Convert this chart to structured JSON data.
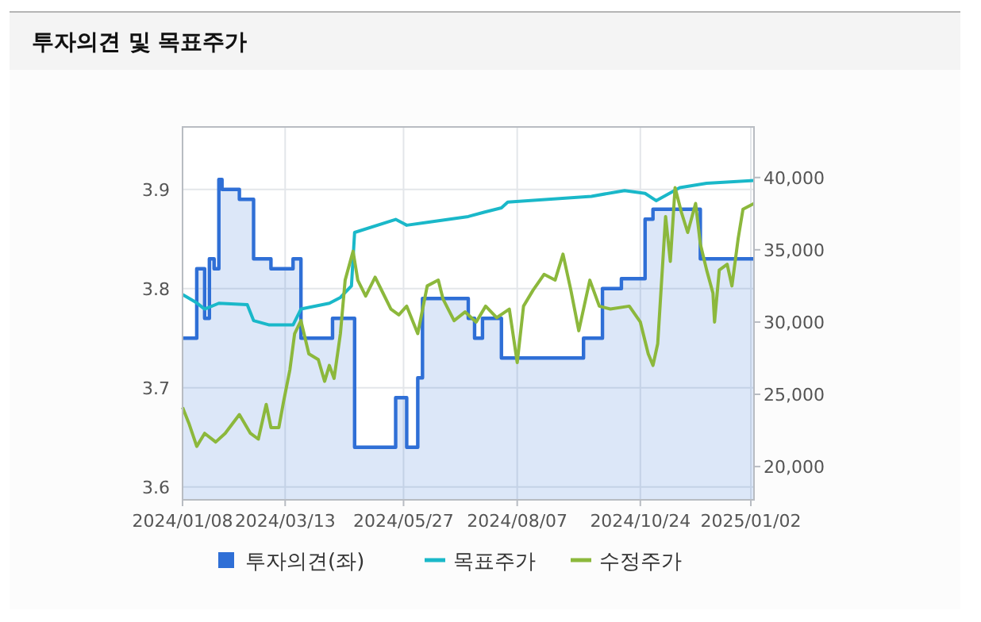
{
  "chart_data": {
    "type": "line",
    "title": "투자의견 및 목표주가",
    "legend": "bottom",
    "grid": true,
    "xlim": [
      "2024-01-08",
      "2025-01-04"
    ],
    "xticks": [
      {
        "value": "2024-01-08",
        "label": "2024/01/08"
      },
      {
        "value": "2024-03-13",
        "label": "2024/03/13"
      },
      {
        "value": "2024-05-27",
        "label": "2024/05/27"
      },
      {
        "value": "2024-08-07",
        "label": "2024/08/07"
      },
      {
        "value": "2024-10-24",
        "label": "2024/10/24"
      },
      {
        "value": "2025-01-02",
        "label": "2025/01/02"
      }
    ],
    "ylim": [
      3.587,
      3.963
    ],
    "yticks": [
      3.6,
      3.7,
      3.8,
      3.9
    ],
    "y2lim": [
      17700,
      43500
    ],
    "y2ticks": [
      {
        "value": 20000,
        "label": "20,000"
      },
      {
        "value": 25000,
        "label": "25,000"
      },
      {
        "value": 30000,
        "label": "30,000"
      },
      {
        "value": 35000,
        "label": "35,000"
      },
      {
        "value": 40000,
        "label": "40,000"
      }
    ],
    "series": [
      {
        "name": "투자의견(좌)",
        "type": "area",
        "color": "#2f6fd6",
        "x": [
          "2024-01-08",
          "2024-01-17",
          "2024-01-17",
          "2024-01-22",
          "2024-01-22",
          "2024-01-25",
          "2024-01-25",
          "2024-01-28",
          "2024-01-28",
          "2024-01-31",
          "2024-01-31",
          "2024-02-02",
          "2024-02-02",
          "2024-02-13",
          "2024-02-13",
          "2024-02-22",
          "2024-02-22",
          "2024-03-04",
          "2024-03-04",
          "2024-03-18",
          "2024-03-18",
          "2024-03-23",
          "2024-03-23",
          "2024-04-12",
          "2024-04-12",
          "2024-04-26",
          "2024-04-26",
          "2024-05-22",
          "2024-05-22",
          "2024-05-29",
          "2024-05-29",
          "2024-06-05",
          "2024-06-05",
          "2024-06-08",
          "2024-06-08",
          "2024-07-07",
          "2024-07-07",
          "2024-07-11",
          "2024-07-11",
          "2024-07-16",
          "2024-07-16",
          "2024-07-28",
          "2024-07-28",
          "2024-09-18",
          "2024-09-18",
          "2024-09-30",
          "2024-09-30",
          "2024-10-12",
          "2024-10-12",
          "2024-10-27",
          "2024-10-27",
          "2024-11-01",
          "2024-11-01",
          "2024-12-01",
          "2024-12-01",
          "2025-01-04"
        ],
        "values": [
          3.75,
          3.75,
          3.82,
          3.82,
          3.77,
          3.77,
          3.83,
          3.83,
          3.82,
          3.82,
          3.91,
          3.91,
          3.9,
          3.9,
          3.89,
          3.89,
          3.83,
          3.83,
          3.82,
          3.82,
          3.83,
          3.83,
          3.75,
          3.75,
          3.77,
          3.77,
          3.64,
          3.64,
          3.69,
          3.69,
          3.64,
          3.64,
          3.71,
          3.71,
          3.79,
          3.79,
          3.77,
          3.77,
          3.75,
          3.75,
          3.77,
          3.77,
          3.73,
          3.73,
          3.75,
          3.75,
          3.8,
          3.8,
          3.81,
          3.81,
          3.87,
          3.87,
          3.88,
          3.88,
          3.83,
          3.83
        ]
      },
      {
        "name": "목표주가",
        "axis": "y2",
        "color": "#1ab8c9",
        "x": [
          "2024-01-08",
          "2024-01-16",
          "2024-01-22",
          "2024-01-31",
          "2024-02-18",
          "2024-02-22",
          "2024-03-03",
          "2024-03-18",
          "2024-03-23",
          "2024-04-10",
          "2024-04-17",
          "2024-04-24",
          "2024-04-26",
          "2024-05-22",
          "2024-05-29",
          "2024-06-11",
          "2024-07-07",
          "2024-07-17",
          "2024-07-28",
          "2024-08-01",
          "2024-09-23",
          "2024-10-14",
          "2024-10-27",
          "2024-11-03",
          "2024-11-18",
          "2024-12-05",
          "2025-01-04"
        ],
        "values": [
          31900,
          31400,
          30900,
          31300,
          31200,
          30100,
          29800,
          29800,
          30900,
          31300,
          31700,
          32500,
          36200,
          37100,
          36700,
          36900,
          37300,
          37600,
          37900,
          38300,
          38700,
          39100,
          38900,
          38400,
          39300,
          39600,
          39800
        ]
      },
      {
        "name": "수정주가",
        "axis": "y2",
        "color": "#8cb83c",
        "x": [
          "2024-01-08",
          "2024-01-12",
          "2024-01-17",
          "2024-01-22",
          "2024-01-29",
          "2024-02-04",
          "2024-02-13",
          "2024-02-20",
          "2024-02-25",
          "2024-03-01",
          "2024-03-04",
          "2024-03-09",
          "2024-03-12",
          "2024-03-16",
          "2024-03-19",
          "2024-03-23",
          "2024-03-28",
          "2024-04-03",
          "2024-04-07",
          "2024-04-10",
          "2024-04-13",
          "2024-04-17",
          "2024-04-20",
          "2024-04-25",
          "2024-04-28",
          "2024-05-03",
          "2024-05-09",
          "2024-05-14",
          "2024-05-19",
          "2024-05-24",
          "2024-05-29",
          "2024-06-05",
          "2024-06-11",
          "2024-06-18",
          "2024-06-21",
          "2024-06-28",
          "2024-07-05",
          "2024-07-12",
          "2024-07-18",
          "2024-07-25",
          "2024-08-02",
          "2024-08-07",
          "2024-08-11",
          "2024-08-17",
          "2024-08-24",
          "2024-08-31",
          "2024-09-05",
          "2024-09-10",
          "2024-09-15",
          "2024-09-22",
          "2024-09-28",
          "2024-10-05",
          "2024-10-17",
          "2024-10-24",
          "2024-10-29",
          "2024-11-01",
          "2024-11-04",
          "2024-11-09",
          "2024-11-12",
          "2024-11-15",
          "2024-11-19",
          "2024-11-23",
          "2024-11-28",
          "2024-12-01",
          "2024-12-05",
          "2024-12-09",
          "2024-12-10",
          "2024-12-13",
          "2024-12-18",
          "2024-12-21",
          "2024-12-25",
          "2024-12-28",
          "2025-01-04"
        ],
        "values": [
          24100,
          23000,
          21400,
          22300,
          21700,
          22300,
          23600,
          22300,
          21900,
          24300,
          22700,
          22700,
          24500,
          26700,
          29200,
          30100,
          27800,
          27400,
          25900,
          27000,
          26100,
          29200,
          32900,
          34900,
          32900,
          31800,
          33100,
          32000,
          30900,
          30500,
          31100,
          29200,
          32500,
          32900,
          31600,
          30100,
          30700,
          30000,
          31100,
          30300,
          30900,
          27200,
          31100,
          32200,
          33300,
          32900,
          34700,
          32200,
          29400,
          32900,
          31100,
          30900,
          31100,
          30000,
          27800,
          27000,
          28500,
          37300,
          34200,
          39300,
          37600,
          36200,
          38200,
          35400,
          33600,
          32000,
          30000,
          33600,
          34000,
          32500,
          35800,
          37800,
          38200
        ]
      }
    ]
  }
}
